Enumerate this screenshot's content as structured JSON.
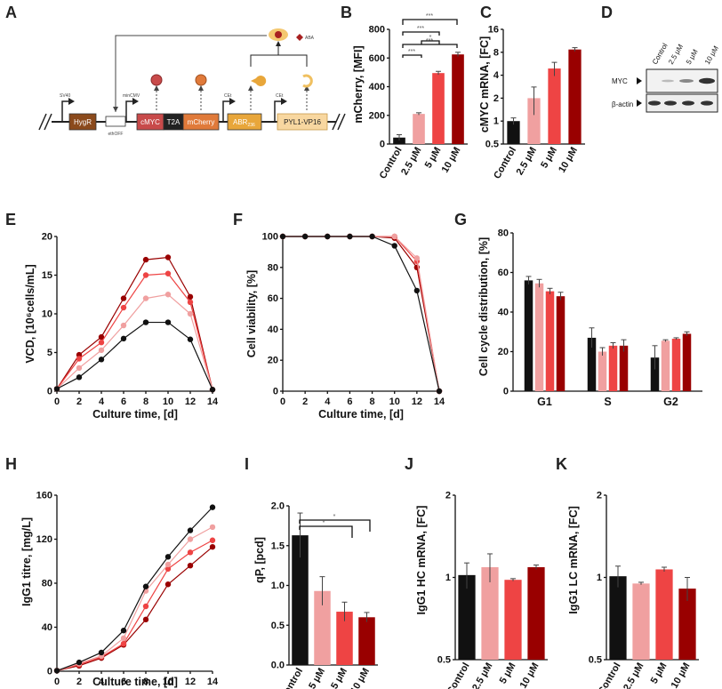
{
  "panels": {
    "A": {
      "label": "A",
      "genes": [
        "HygR",
        "cMYC",
        "T2A",
        "mCherry",
        "ABR",
        "PYL1-VP16"
      ],
      "abr_sub": "236",
      "promoters": [
        "SV40",
        "minCMV",
        "CEt",
        "CEt"
      ],
      "element_small": "ethOFF",
      "ligand_small": "ABA"
    },
    "B": {
      "label": "B",
      "ylabel": "mCherry, [MFI]",
      "sig": [
        "***",
        "***",
        "***",
        "*",
        "***"
      ]
    },
    "C": {
      "label": "C",
      "ylabel": "cMYC mRNA, [FC]"
    },
    "D": {
      "label": "D",
      "lanes": [
        "Control",
        "2.5 μM",
        "5 μM",
        "10 μM"
      ],
      "rows": [
        "MYC",
        "β-actin"
      ]
    },
    "E": {
      "label": "E",
      "ylabel": "VCD, [10⁶cells/mL]",
      "xlabel": "Culture time, [d]"
    },
    "F": {
      "label": "F",
      "ylabel": "Cell viability, [%]",
      "xlabel": "Culture time, [d]"
    },
    "G": {
      "label": "G",
      "ylabel": "Cell cycle distribution, [%]"
    },
    "H": {
      "label": "H",
      "ylabel": "IgG1 titre, [mg/L]",
      "xlabel": "Culture time, [d]"
    },
    "I": {
      "label": "I",
      "ylabel": "qP, [pcd]",
      "sig": [
        "*",
        "*"
      ]
    },
    "J": {
      "label": "J",
      "ylabel": "IgG1 HC mRNA, [FC]"
    },
    "K": {
      "label": "K",
      "ylabel": "IgG1 LC mRNA, [FC]"
    }
  },
  "colors": {
    "control": "#111111",
    "c25": "#f0a0a0",
    "c5": "#ee4444",
    "c10": "#990000"
  },
  "chart_data": [
    {
      "id": "B",
      "type": "bar",
      "categories": [
        "Control",
        "2.5 μM",
        "5 μM",
        "10 μM"
      ],
      "values": [
        45,
        210,
        495,
        625
      ],
      "errors": [
        20,
        8,
        12,
        15
      ],
      "ylim": [
        0,
        800
      ],
      "yticks": [
        0,
        200,
        400,
        600,
        800
      ],
      "ylabel": "mCherry, [MFI]"
    },
    {
      "id": "C",
      "type": "bar",
      "log": true,
      "categories": [
        "Control",
        "2.5 μM",
        "5 μM",
        "10 μM"
      ],
      "values": [
        1.0,
        2.0,
        4.9,
        8.7
      ],
      "errors": [
        0.1,
        0.8,
        1.0,
        0.5
      ],
      "ylim": [
        0.5,
        16
      ],
      "yticks": [
        "0.5",
        "1",
        "2",
        "4",
        "8",
        "16"
      ],
      "ylabel": "cMYC mRNA, [FC]"
    },
    {
      "id": "E",
      "type": "line",
      "x": [
        0,
        2,
        4,
        6,
        8,
        10,
        12,
        14
      ],
      "xlim": [
        0,
        14
      ],
      "xticks": [
        0,
        2,
        4,
        6,
        8,
        10,
        12,
        14
      ],
      "ylim": [
        0,
        20
      ],
      "yticks": [
        0,
        5,
        10,
        15,
        20
      ],
      "series": [
        {
          "name": "Control",
          "values": [
            0.3,
            1.8,
            4.1,
            6.8,
            8.9,
            8.9,
            6.7,
            0.2
          ]
        },
        {
          "name": "2.5 μM",
          "values": [
            0.3,
            3.0,
            5.3,
            8.5,
            12.0,
            12.5,
            10.0,
            0.2
          ]
        },
        {
          "name": "5 μM",
          "values": [
            0.3,
            4.2,
            6.3,
            10.8,
            15.0,
            15.2,
            11.5,
            0.2
          ]
        },
        {
          "name": "10 μM",
          "values": [
            0.3,
            4.7,
            7.0,
            12.0,
            17.0,
            17.3,
            12.2,
            0.2
          ]
        }
      ]
    },
    {
      "id": "F",
      "type": "line",
      "x": [
        0,
        2,
        4,
        6,
        8,
        10,
        12,
        14
      ],
      "xlim": [
        0,
        14
      ],
      "xticks": [
        0,
        2,
        4,
        6,
        8,
        10,
        12,
        14
      ],
      "ylim": [
        0,
        100
      ],
      "yticks": [
        0,
        20,
        40,
        60,
        80,
        100
      ],
      "series": [
        {
          "name": "Control",
          "values": [
            100,
            100,
            100,
            100,
            100,
            94,
            65,
            0
          ]
        },
        {
          "name": "2.5 μM",
          "values": [
            100,
            100,
            100,
            100,
            100,
            100,
            86,
            0
          ]
        },
        {
          "name": "5 μM",
          "values": [
            100,
            100,
            100,
            100,
            100,
            100,
            84,
            0
          ]
        },
        {
          "name": "10 μM",
          "values": [
            100,
            100,
            100,
            100,
            100,
            99,
            80,
            0
          ]
        }
      ]
    },
    {
      "id": "G",
      "type": "bar",
      "categories": [
        "G1",
        "S",
        "G2"
      ],
      "ylim": [
        0,
        80
      ],
      "yticks": [
        0,
        20,
        40,
        60,
        80
      ],
      "series": [
        {
          "name": "Control",
          "values": [
            56,
            27,
            17
          ],
          "errors": [
            2,
            5,
            6
          ]
        },
        {
          "name": "2.5 μM",
          "values": [
            54.5,
            20,
            25.5
          ],
          "errors": [
            2,
            2,
            0.5
          ]
        },
        {
          "name": "5 μM",
          "values": [
            50.5,
            23,
            26.5
          ],
          "errors": [
            1.5,
            1.5,
            0.5
          ]
        },
        {
          "name": "10 μM",
          "values": [
            48,
            23,
            29
          ],
          "errors": [
            2,
            3,
            1
          ]
        }
      ]
    },
    {
      "id": "H",
      "type": "line",
      "x": [
        0,
        2,
        4,
        6,
        8,
        10,
        12,
        14
      ],
      "xlim": [
        0,
        14
      ],
      "xticks": [
        0,
        2,
        4,
        6,
        8,
        10,
        12,
        14
      ],
      "ylim": [
        0,
        160
      ],
      "yticks": [
        0,
        40,
        80,
        120,
        160
      ],
      "series": [
        {
          "name": "Control",
          "values": [
            0.5,
            8,
            17,
            37,
            77,
            104,
            128,
            149
          ]
        },
        {
          "name": "2.5 μM",
          "values": [
            0.5,
            7,
            14,
            30,
            73,
            97,
            120,
            131
          ]
        },
        {
          "name": "5 μM",
          "values": [
            0.5,
            6,
            13,
            25,
            59,
            93,
            108,
            119
          ]
        },
        {
          "name": "10 μM",
          "values": [
            0.5,
            5,
            12,
            24,
            47,
            79,
            96,
            113
          ]
        }
      ]
    },
    {
      "id": "I",
      "type": "bar",
      "categories": [
        "Control",
        "2.5 μM",
        "5 μM",
        "10 μM"
      ],
      "values": [
        1.63,
        0.93,
        0.67,
        0.6
      ],
      "errors": [
        0.28,
        0.18,
        0.12,
        0.06
      ],
      "ylim": [
        0,
        2.0
      ],
      "yticks": [
        "0.0",
        "0.5",
        "1.0",
        "1.5",
        "2.0"
      ]
    },
    {
      "id": "J",
      "type": "bar",
      "log": true,
      "categories": [
        "Control",
        "2.5 μM",
        "5 μM",
        "10 μM"
      ],
      "values": [
        1.02,
        1.09,
        0.98,
        1.09
      ],
      "errors": [
        0.11,
        0.13,
        0.01,
        0.02
      ],
      "ylim": [
        0.5,
        2
      ],
      "yticks": [
        "0.5",
        "1",
        "2"
      ]
    },
    {
      "id": "K",
      "type": "bar",
      "log": true,
      "categories": [
        "Control",
        "2.5 μM",
        "5 μM",
        "10 μM"
      ],
      "values": [
        1.01,
        0.95,
        1.07,
        0.91
      ],
      "errors": [
        0.09,
        0.01,
        0.02,
        0.09
      ],
      "ylim": [
        0.5,
        2
      ],
      "yticks": [
        "0.5",
        "1",
        "2"
      ]
    }
  ]
}
